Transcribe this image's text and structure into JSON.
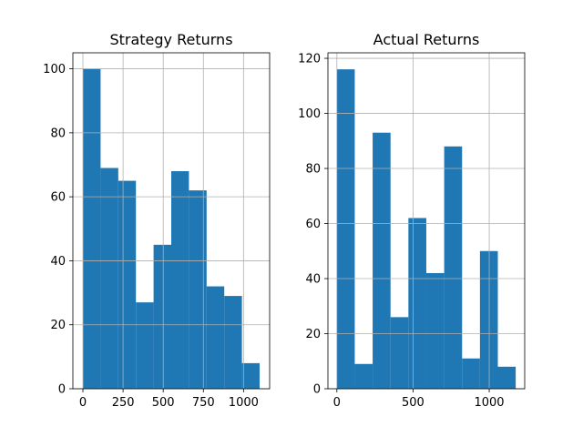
{
  "chart_data": [
    {
      "type": "bar",
      "title": "Strategy Returns",
      "xlim": [
        -62.5,
        1162.5
      ],
      "ylim": [
        0,
        105
      ],
      "xticks": [
        0,
        250,
        500,
        750,
        1000
      ],
      "yticks": [
        0,
        20,
        40,
        60,
        80,
        100
      ],
      "grid": true,
      "bin_edges": [
        0,
        110,
        220,
        330,
        440,
        550,
        660,
        770,
        880,
        990,
        1100
      ],
      "values": [
        100,
        69,
        65,
        27,
        45,
        68,
        62,
        32,
        29,
        8
      ],
      "color": "#1f77b4"
    },
    {
      "type": "bar",
      "title": "Actual Returns",
      "xlim": [
        -58.7,
        1233
      ],
      "ylim": [
        0,
        122
      ],
      "xticks": [
        0,
        500,
        1000
      ],
      "yticks": [
        0,
        20,
        40,
        60,
        80,
        100,
        120
      ],
      "grid": true,
      "bin_edges": [
        0,
        117.4,
        234.8,
        352.2,
        469.6,
        587,
        704.4,
        821.8,
        939.2,
        1056.6,
        1174
      ],
      "values": [
        116,
        9,
        93,
        26,
        62,
        42,
        88,
        11,
        50,
        8
      ],
      "color": "#1f77b4"
    }
  ]
}
